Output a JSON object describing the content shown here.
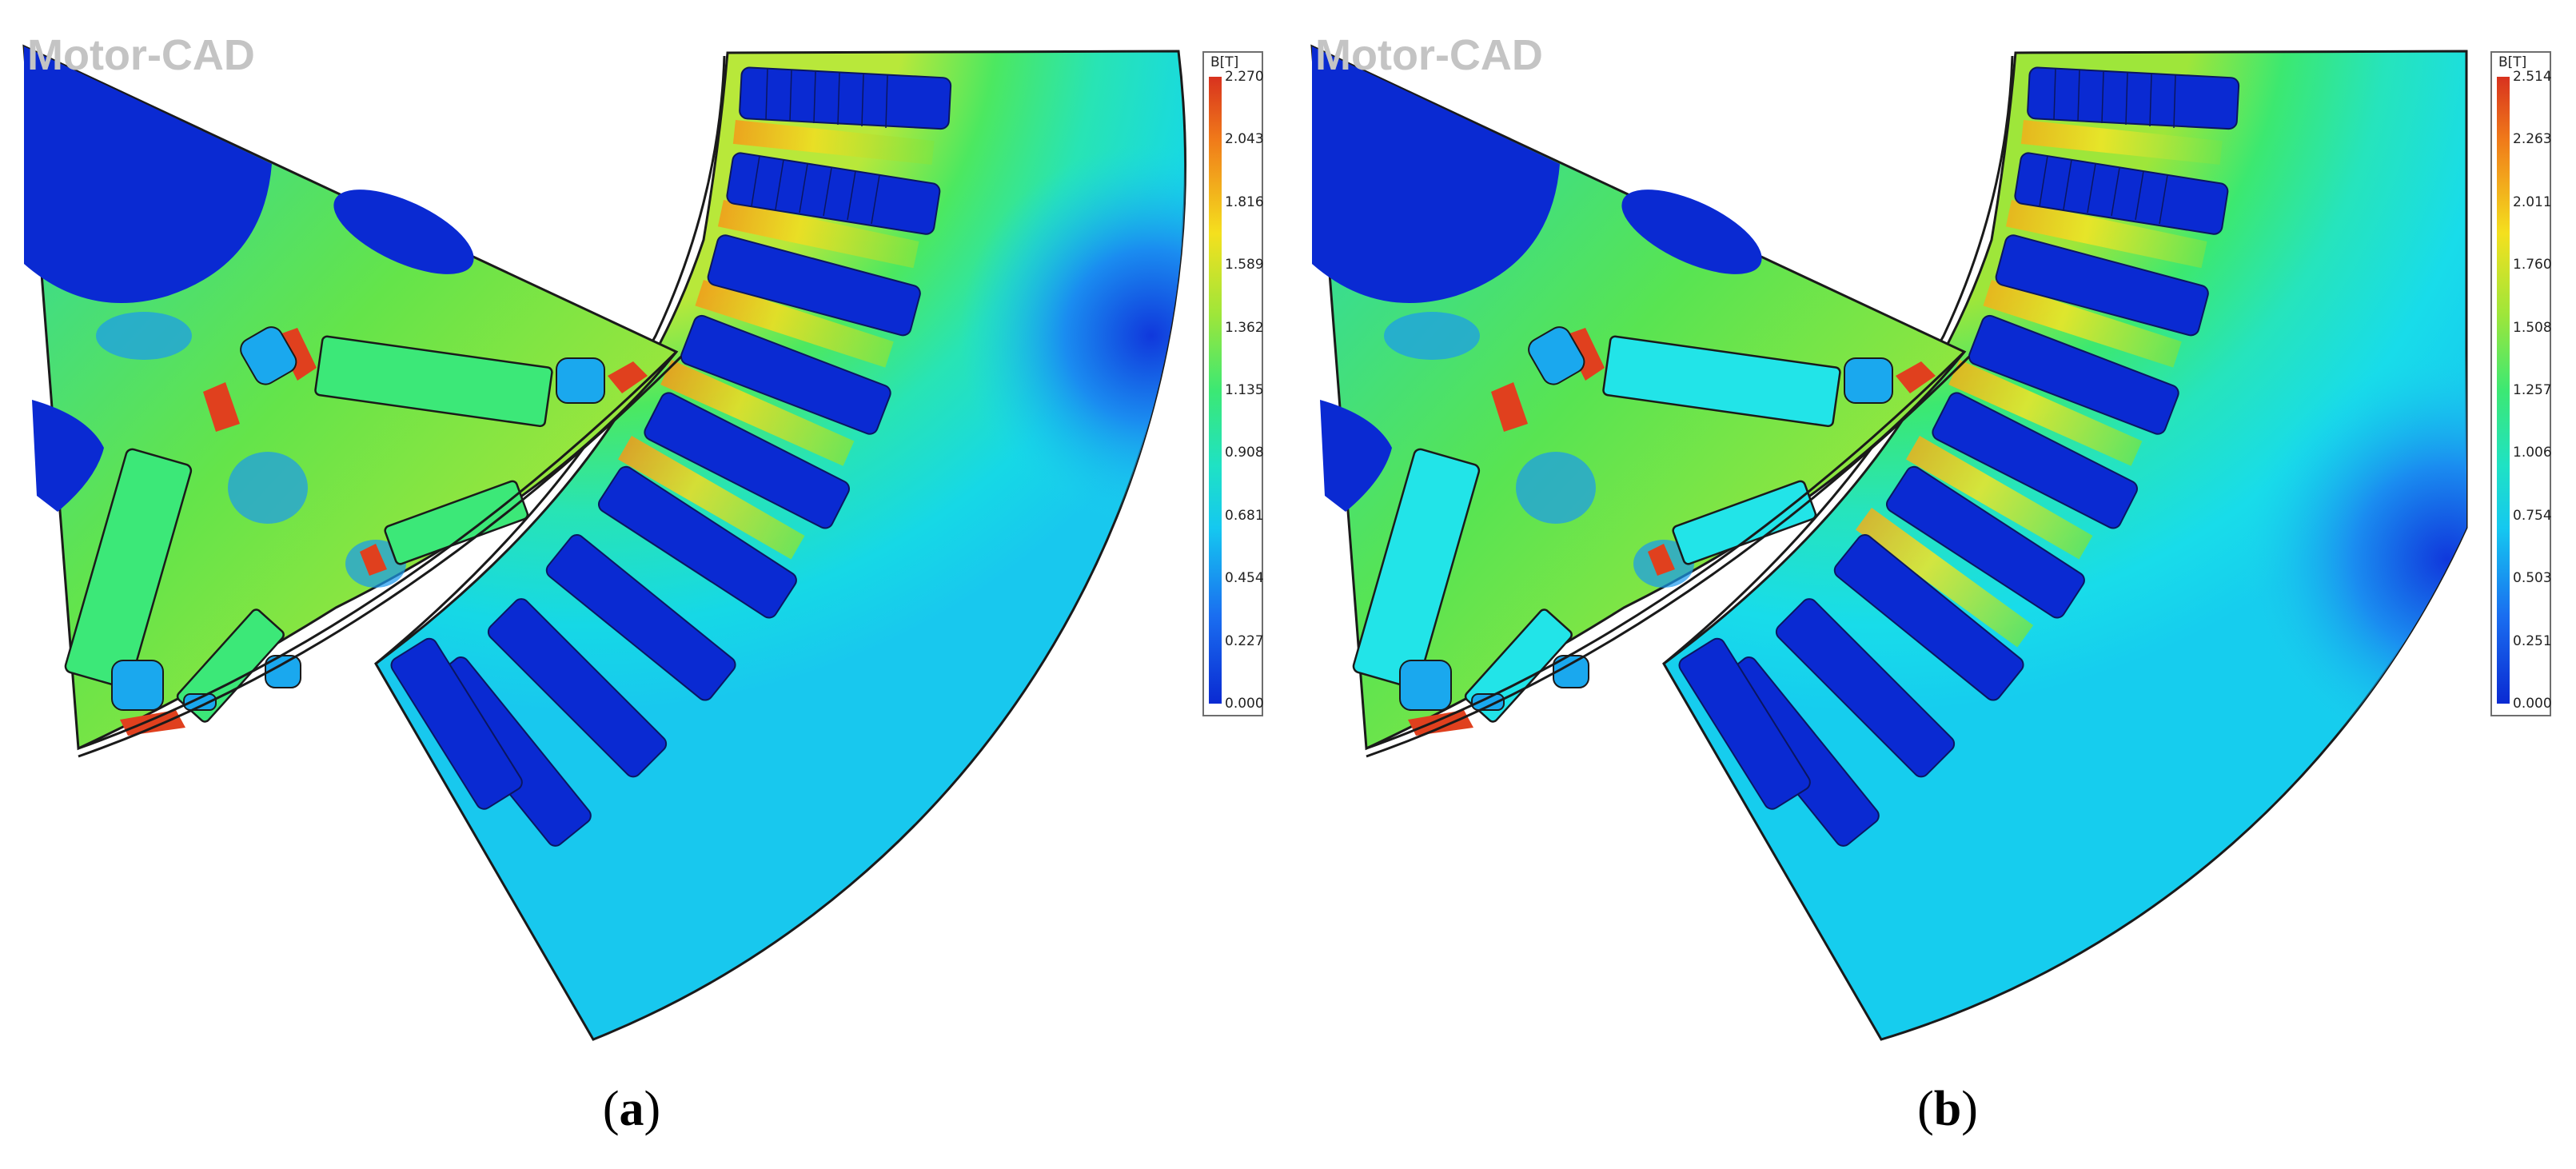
{
  "figure": {
    "panels": [
      {
        "id": "a",
        "watermark": "Motor-CAD",
        "caption_paren_open": "(",
        "caption_letter": "a",
        "caption_paren_close": ")",
        "colorbar": {
          "unit": "B[T]",
          "ticks": [
            "2.270",
            "2.043",
            "1.816",
            "1.589",
            "1.362",
            "1.135",
            "0.908",
            "0.681",
            "0.454",
            "0.227",
            "0.000"
          ]
        }
      },
      {
        "id": "b",
        "watermark": "Motor-CAD",
        "caption_paren_open": "(",
        "caption_letter": "b",
        "caption_paren_close": ")",
        "colorbar": {
          "unit": "B[T]",
          "ticks": [
            "2.514",
            "2.263",
            "2.011",
            "1.760",
            "1.508",
            "1.257",
            "1.006",
            "0.754",
            "0.503",
            "0.251",
            "0.000"
          ]
        }
      }
    ],
    "colors": {
      "low": "#0a2ad2",
      "mid_low": "#15c8f0",
      "mid": "#3ce873",
      "mid_high": "#f4e01e",
      "high": "#d8321e",
      "outline": "#1a1a1a",
      "watermark": "#c4c4c4"
    }
  }
}
